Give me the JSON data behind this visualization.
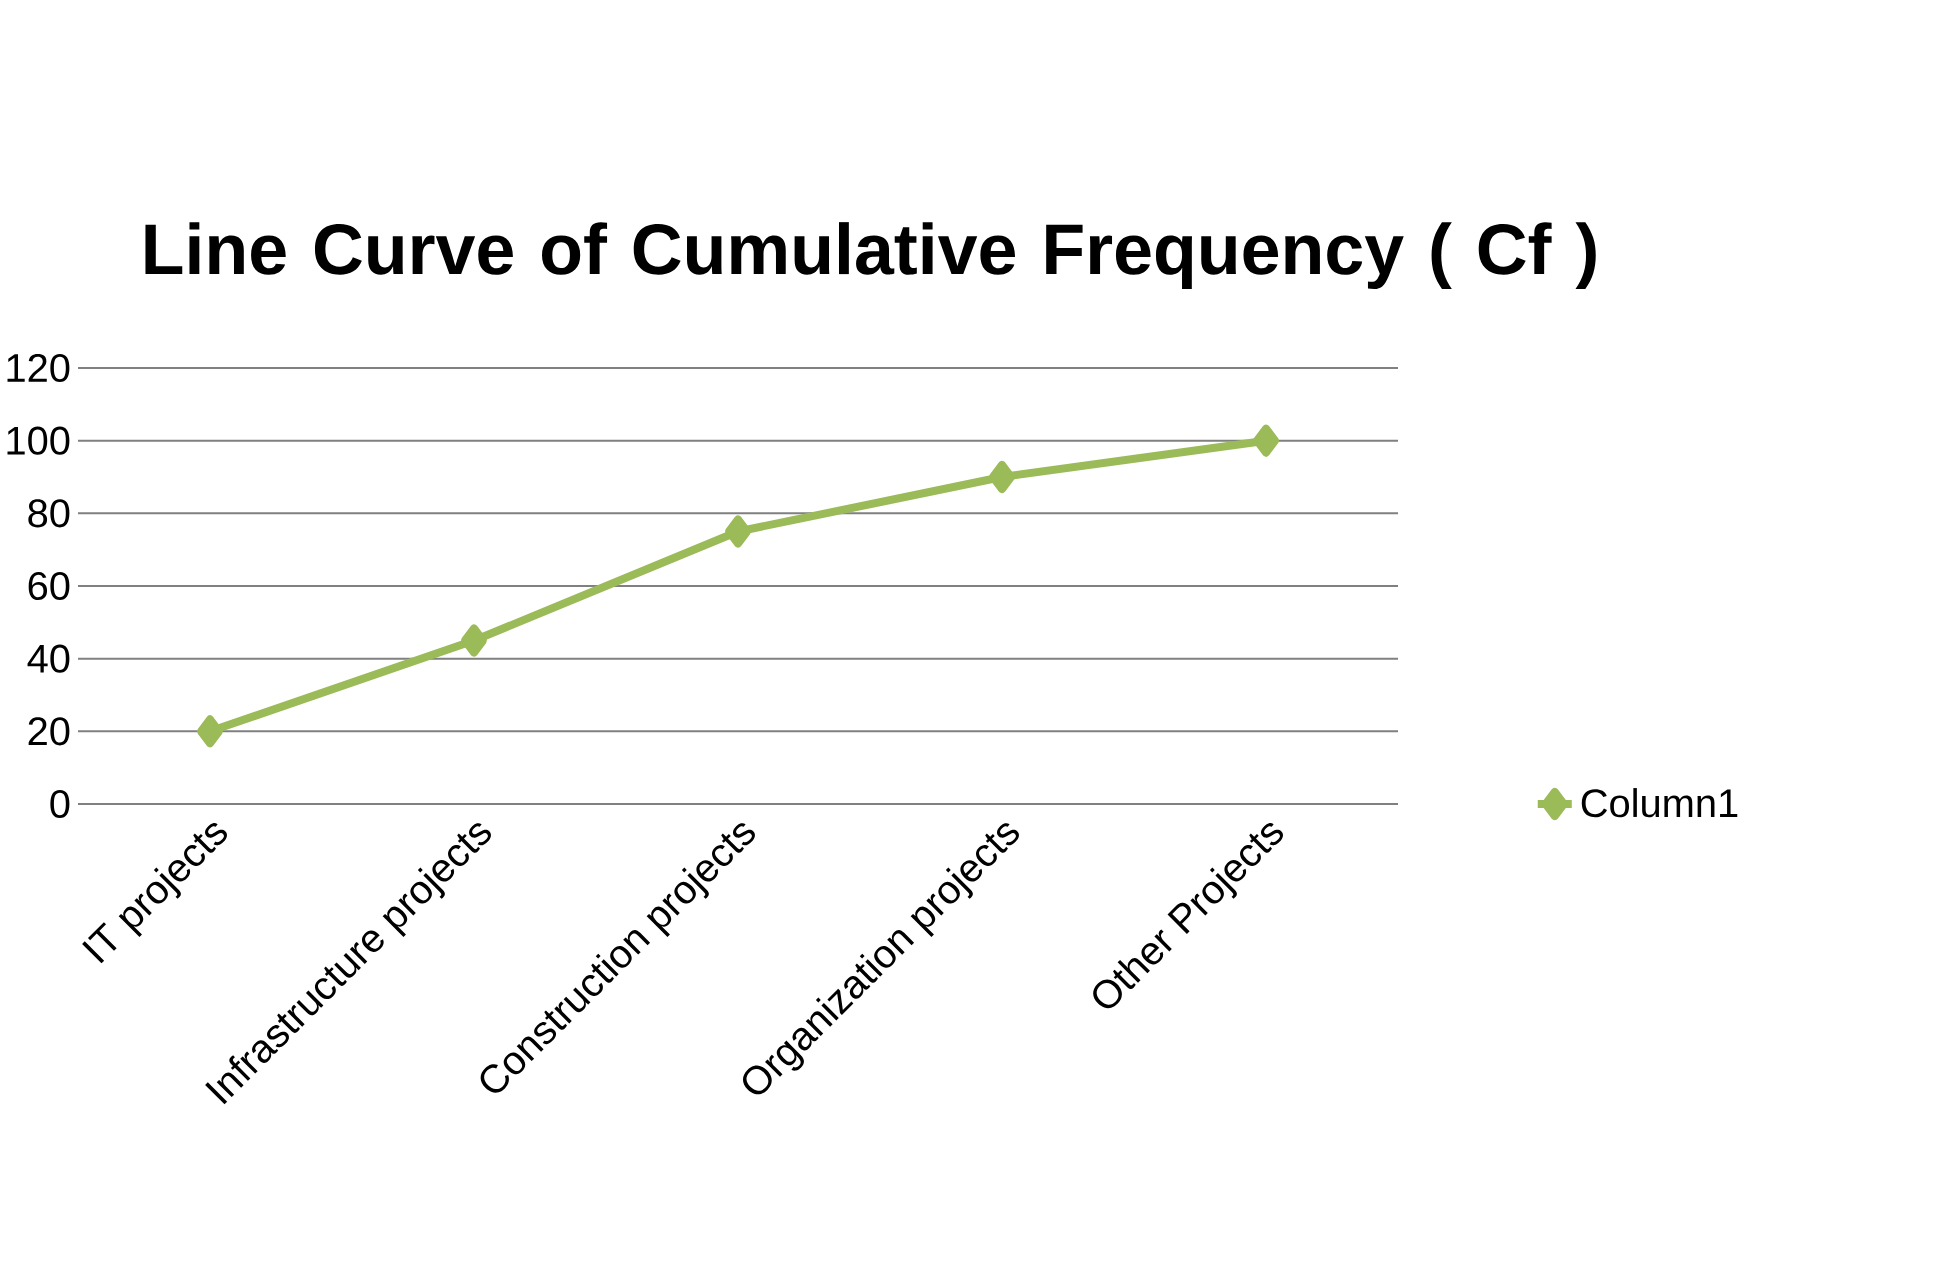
{
  "chart_data": {
    "type": "line",
    "title": "Line Curve of Cumulative Frequency ( Cf )",
    "categories": [
      "IT projects",
      "Infrastructure projects",
      "Construction projects",
      "Organization projects",
      "Other Projects"
    ],
    "series": [
      {
        "name": "Column1",
        "color": "#9bbb59",
        "values": [
          20,
          45,
          75,
          90,
          100
        ]
      }
    ],
    "ylim": [
      0,
      120
    ],
    "yticks": [
      0,
      20,
      40,
      60,
      80,
      100,
      120
    ],
    "grid": "y",
    "legend": "right",
    "marker": "diamond",
    "line_style": "solid"
  }
}
